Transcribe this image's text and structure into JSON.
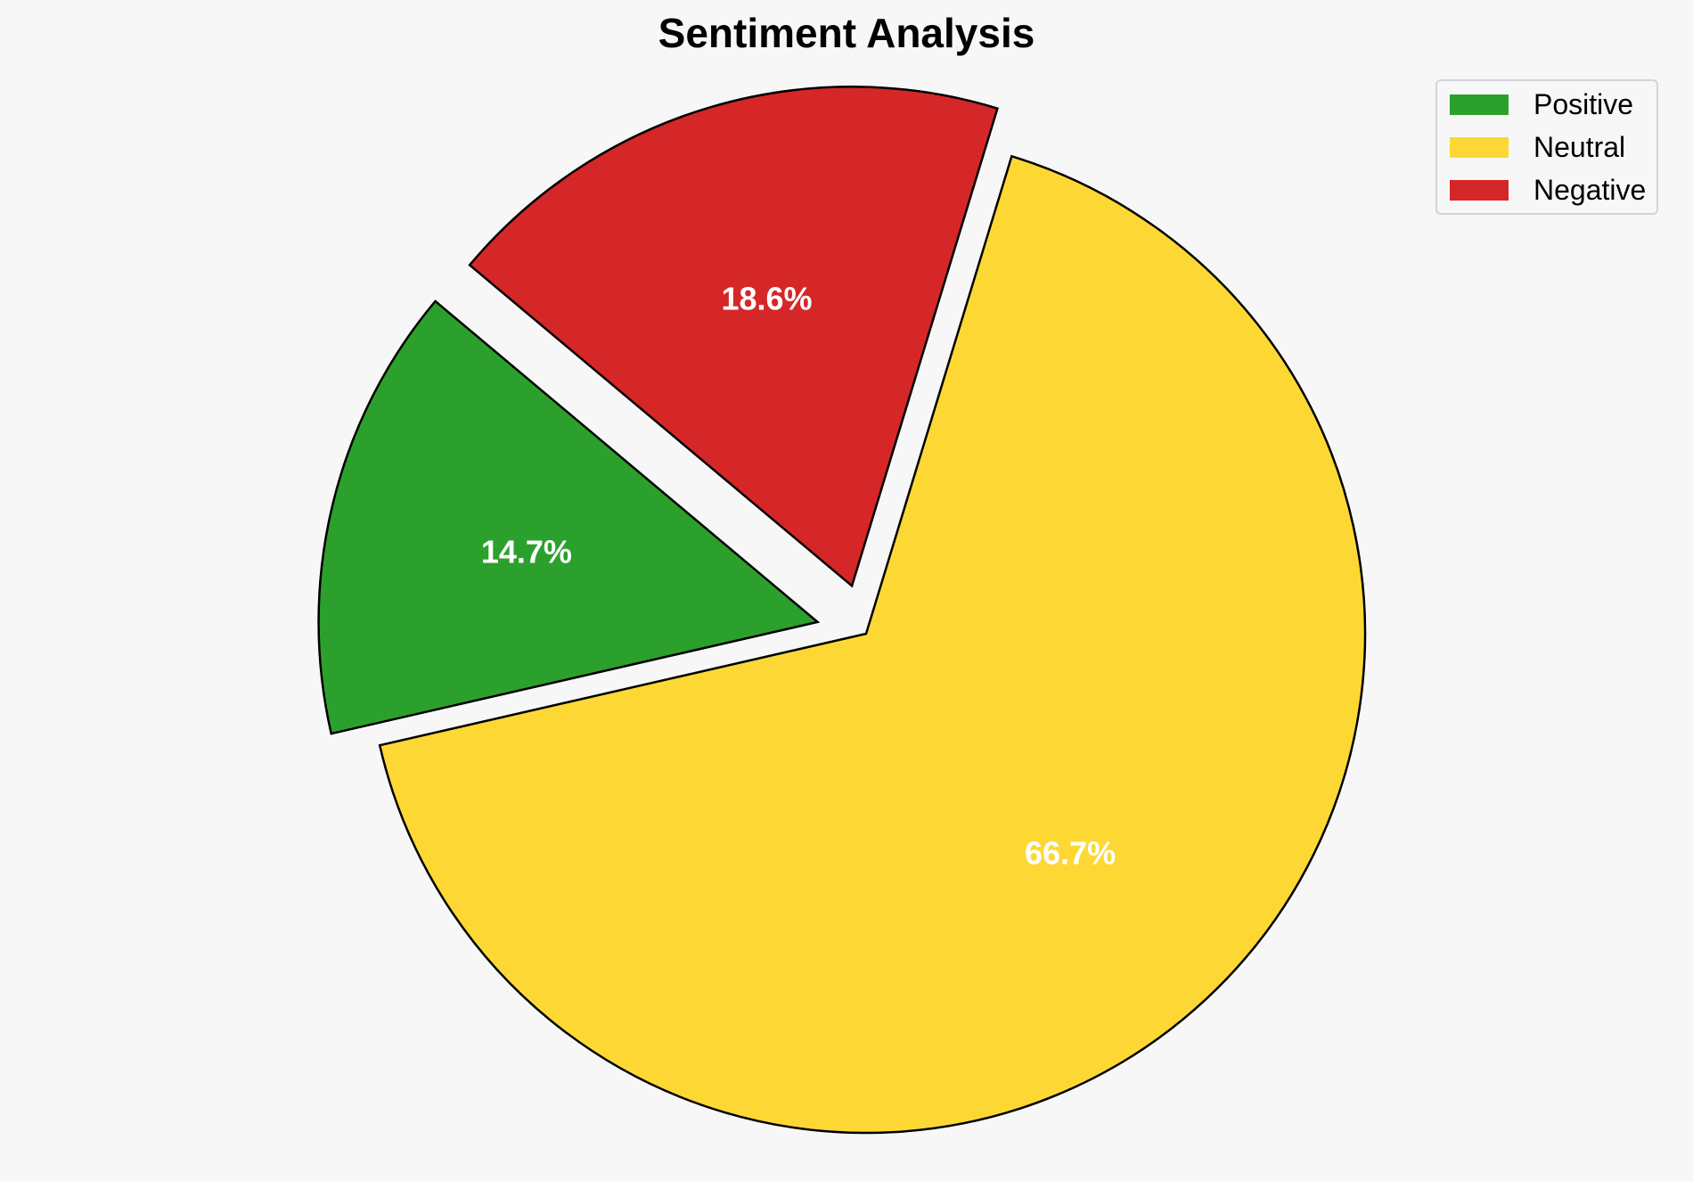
{
  "chart_data": {
    "type": "pie",
    "title": "Sentiment Analysis",
    "categories": [
      "Positive",
      "Neutral",
      "Negative"
    ],
    "values": [
      14.7,
      66.7,
      18.6
    ],
    "labels": [
      "14.7%",
      "66.7%",
      "18.6%"
    ],
    "colors": [
      "#2ca02c",
      "#fdd835",
      "#d62728"
    ],
    "exploded": [
      true,
      false,
      true
    ],
    "start_angle_deg": 140,
    "legend_position": "top-right"
  }
}
